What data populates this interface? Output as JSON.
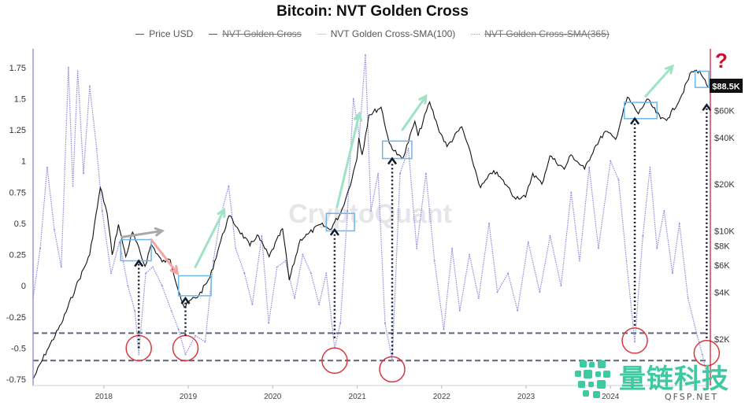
{
  "title": "Bitcoin: NVT Golden Cross",
  "legend": [
    {
      "label": "Price USD",
      "hidden": false
    },
    {
      "label": "NVT Golden Cross",
      "hidden": true
    },
    {
      "label": "NVT Golden Cross-SMA(100)",
      "hidden": false
    },
    {
      "label": "NVT Golden Cross-SMA(365)",
      "hidden": true
    }
  ],
  "watermark": "CryptoQuant",
  "brand": {
    "name": "量链科技",
    "site": "QFSP.NET"
  },
  "price_badge": "$88.5K",
  "question_mark": "?",
  "colors": {
    "price": "#111111",
    "nvt": "#8a8ae0",
    "grey_arrow": "#a8a8a8",
    "red_arrow": "#f4a3a3",
    "green_arrow": "#9de3c4",
    "box": "#6fb6e8",
    "circle": "#d9363e",
    "guide": "#5a6478",
    "question": "#c8102e",
    "brand": "#3fc9a0"
  },
  "chart_data": {
    "type": "line",
    "title": "Bitcoin: NVT Golden Cross",
    "xlabel": "",
    "ylabel": "",
    "x_range": [
      "2017-03-01",
      "2025-03-01"
    ],
    "x_ticks": [
      {
        "label": "2018",
        "date": "2018-01-01"
      },
      {
        "label": "2019",
        "date": "2019-01-01"
      },
      {
        "label": "2020",
        "date": "2020-01-01"
      },
      {
        "label": "2021",
        "date": "2021-01-01"
      },
      {
        "label": "2022",
        "date": "2022-01-01"
      },
      {
        "label": "2023",
        "date": "2023-01-01"
      },
      {
        "label": "2024",
        "date": "2024-01-01"
      }
    ],
    "left_axis": {
      "ylim": [
        -0.8,
        1.9
      ],
      "ticks": [
        {
          "label": "1.75",
          "value": 1.75
        },
        {
          "label": "1.5",
          "value": 1.5
        },
        {
          "label": "1.25",
          "value": 1.25
        },
        {
          "label": "1",
          "value": 1
        },
        {
          "label": "0.75",
          "value": 0.75
        },
        {
          "label": "0.5",
          "value": 0.5
        },
        {
          "label": "0.25",
          "value": 0.25
        },
        {
          "label": "0",
          "value": 0
        },
        {
          "label": "-0.25",
          "value": -0.25
        },
        {
          "label": "-0.5",
          "value": -0.5
        },
        {
          "label": "-0.75",
          "value": -0.75
        }
      ]
    },
    "right_axis": {
      "scale": "log",
      "ylim": [
        1000,
        150000
      ],
      "ticks": [
        {
          "label": "$60K",
          "value": 60000
        },
        {
          "label": "$40K",
          "value": 40000
        },
        {
          "label": "$20K",
          "value": 20000
        },
        {
          "label": "$10K",
          "value": 10000
        },
        {
          "label": "$8K",
          "value": 8000
        },
        {
          "label": "$6K",
          "value": 6000
        },
        {
          "label": "$4K",
          "value": 4000
        },
        {
          "label": "$2K",
          "value": 2000
        }
      ]
    },
    "guide_levels": [
      -0.38,
      -0.6
    ],
    "series": [
      {
        "name": "Price USD",
        "axis": "right",
        "points": [
          [
            "2017-03-01",
            1100
          ],
          [
            "2017-05-01",
            1700
          ],
          [
            "2017-07-01",
            2500
          ],
          [
            "2017-09-01",
            4300
          ],
          [
            "2017-11-01",
            7000
          ],
          [
            "2017-12-17",
            19000
          ],
          [
            "2018-01-15",
            13000
          ],
          [
            "2018-02-06",
            7000
          ],
          [
            "2018-03-05",
            11000
          ],
          [
            "2018-04-06",
            6800
          ],
          [
            "2018-05-05",
            9800
          ],
          [
            "2018-06-28",
            5900
          ],
          [
            "2018-07-25",
            8200
          ],
          [
            "2018-09-10",
            6300
          ],
          [
            "2018-10-15",
            6500
          ],
          [
            "2018-11-25",
            3900
          ],
          [
            "2018-12-15",
            3200
          ],
          [
            "2019-01-15",
            3600
          ],
          [
            "2019-02-15",
            3800
          ],
          [
            "2019-04-05",
            5000
          ],
          [
            "2019-05-15",
            8000
          ],
          [
            "2019-06-26",
            12500
          ],
          [
            "2019-08-01",
            10500
          ],
          [
            "2019-09-25",
            8000
          ],
          [
            "2019-10-26",
            9400
          ],
          [
            "2019-12-17",
            6800
          ],
          [
            "2020-02-13",
            10300
          ],
          [
            "2020-03-13",
            4800
          ],
          [
            "2020-04-30",
            8800
          ],
          [
            "2020-06-01",
            9500
          ],
          [
            "2020-07-27",
            11000
          ],
          [
            "2020-09-05",
            10200
          ],
          [
            "2020-10-21",
            13000
          ],
          [
            "2020-11-25",
            18500
          ],
          [
            "2020-12-30",
            29000
          ],
          [
            "2021-01-08",
            40000
          ],
          [
            "2021-01-22",
            31000
          ],
          [
            "2021-02-20",
            56000
          ],
          [
            "2021-04-14",
            63000
          ],
          [
            "2021-05-19",
            37000
          ],
          [
            "2021-06-22",
            31000
          ],
          [
            "2021-07-20",
            30000
          ],
          [
            "2021-09-07",
            51000
          ],
          [
            "2021-09-21",
            41000
          ],
          [
            "2021-11-10",
            68000
          ],
          [
            "2021-12-15",
            47000
          ],
          [
            "2022-01-24",
            35000
          ],
          [
            "2022-03-29",
            47000
          ],
          [
            "2022-05-12",
            29000
          ],
          [
            "2022-06-18",
            19000
          ],
          [
            "2022-08-14",
            24500
          ],
          [
            "2022-10-15",
            19200
          ],
          [
            "2022-11-10",
            16500
          ],
          [
            "2022-12-30",
            16500
          ],
          [
            "2023-01-30",
            23500
          ],
          [
            "2023-03-10",
            20000
          ],
          [
            "2023-04-14",
            30500
          ],
          [
            "2023-06-15",
            25000
          ],
          [
            "2023-07-14",
            31000
          ],
          [
            "2023-09-11",
            25000
          ],
          [
            "2023-10-24",
            34500
          ],
          [
            "2023-12-10",
            44000
          ],
          [
            "2024-01-23",
            39000
          ],
          [
            "2024-03-14",
            73000
          ],
          [
            "2024-05-01",
            57000
          ],
          [
            "2024-06-07",
            71000
          ],
          [
            "2024-08-05",
            53000
          ],
          [
            "2024-09-06",
            53500
          ],
          [
            "2024-10-29",
            72000
          ],
          [
            "2024-12-17",
            107000
          ],
          [
            "2025-01-20",
            108000
          ],
          [
            "2025-02-05",
            97000
          ],
          [
            "2025-02-28",
            84000
          ]
        ]
      },
      {
        "name": "NVT Golden Cross-SMA(100)",
        "axis": "left",
        "points": [
          [
            "2017-03-01",
            -0.1
          ],
          [
            "2017-04-01",
            0.3
          ],
          [
            "2017-05-01",
            0.95
          ],
          [
            "2017-06-01",
            0.45
          ],
          [
            "2017-07-01",
            0.15
          ],
          [
            "2017-08-01",
            1.75
          ],
          [
            "2017-08-20",
            0.8
          ],
          [
            "2017-09-10",
            1.72
          ],
          [
            "2017-10-05",
            0.9
          ],
          [
            "2017-11-01",
            1.6
          ],
          [
            "2017-12-01",
            1.1
          ],
          [
            "2017-12-25",
            0.6
          ],
          [
            "2018-02-01",
            0.1
          ],
          [
            "2018-03-10",
            0.35
          ],
          [
            "2018-04-15",
            0.0
          ],
          [
            "2018-05-15",
            -0.2
          ],
          [
            "2018-06-01",
            -0.55
          ],
          [
            "2018-07-01",
            0.1
          ],
          [
            "2018-08-01",
            0.15
          ],
          [
            "2018-09-10",
            0.0
          ],
          [
            "2018-10-20",
            -0.2
          ],
          [
            "2018-11-20",
            -0.35
          ],
          [
            "2018-12-20",
            -0.55
          ],
          [
            "2019-02-01",
            -0.4
          ],
          [
            "2019-03-15",
            -0.45
          ],
          [
            "2019-04-20",
            0.2
          ],
          [
            "2019-05-20",
            0.55
          ],
          [
            "2019-06-25",
            0.8
          ],
          [
            "2019-07-25",
            0.3
          ],
          [
            "2019-09-01",
            0.1
          ],
          [
            "2019-10-05",
            -0.15
          ],
          [
            "2019-11-15",
            0.4
          ],
          [
            "2019-12-15",
            -0.3
          ],
          [
            "2020-01-20",
            0.15
          ],
          [
            "2020-02-25",
            0.2
          ],
          [
            "2020-04-05",
            -0.1
          ],
          [
            "2020-05-10",
            0.25
          ],
          [
            "2020-06-15",
            0.1
          ],
          [
            "2020-07-20",
            -0.15
          ],
          [
            "2020-08-20",
            0.1
          ],
          [
            "2020-09-25",
            -0.5
          ],
          [
            "2020-10-20",
            -0.3
          ],
          [
            "2020-11-20",
            0.6
          ],
          [
            "2020-12-15",
            1.5
          ],
          [
            "2021-01-10",
            1.2
          ],
          [
            "2021-02-05",
            1.85
          ],
          [
            "2021-03-01",
            0.6
          ],
          [
            "2021-04-01",
            0.9
          ],
          [
            "2021-05-01",
            -0.3
          ],
          [
            "2021-06-01",
            -0.6
          ],
          [
            "2021-07-05",
            0.9
          ],
          [
            "2021-08-10",
            1.1
          ],
          [
            "2021-09-15",
            0.3
          ],
          [
            "2021-10-25",
            0.9
          ],
          [
            "2021-12-01",
            0.2
          ],
          [
            "2022-01-10",
            -0.35
          ],
          [
            "2022-02-15",
            0.3
          ],
          [
            "2022-03-20",
            -0.2
          ],
          [
            "2022-05-01",
            0.25
          ],
          [
            "2022-06-10",
            -0.1
          ],
          [
            "2022-07-25",
            0.5
          ],
          [
            "2022-08-30",
            -0.05
          ],
          [
            "2022-10-15",
            0.1
          ],
          [
            "2022-11-25",
            -0.2
          ],
          [
            "2023-01-10",
            0.35
          ],
          [
            "2023-03-01",
            -0.05
          ],
          [
            "2023-04-15",
            0.4
          ],
          [
            "2023-06-01",
            0.0
          ],
          [
            "2023-07-15",
            0.75
          ],
          [
            "2023-08-20",
            0.2
          ],
          [
            "2023-10-01",
            0.95
          ],
          [
            "2023-11-10",
            0.3
          ],
          [
            "2024-01-01",
            1.0
          ],
          [
            "2024-02-05",
            0.85
          ],
          [
            "2024-03-10",
            0.2
          ],
          [
            "2024-04-15",
            -0.45
          ],
          [
            "2024-05-20",
            0.4
          ],
          [
            "2024-06-20",
            0.95
          ],
          [
            "2024-07-20",
            0.3
          ],
          [
            "2024-08-20",
            0.6
          ],
          [
            "2024-09-25",
            0.1
          ],
          [
            "2024-10-25",
            0.5
          ],
          [
            "2024-12-01",
            -0.1
          ],
          [
            "2025-01-10",
            -0.4
          ],
          [
            "2025-02-01",
            -0.55
          ],
          [
            "2025-02-25",
            -0.75
          ]
        ]
      }
    ],
    "annotations": {
      "circles": [
        {
          "date": "2018-06-01",
          "value": -0.5
        },
        {
          "date": "2018-12-20",
          "value": -0.5
        },
        {
          "date": "2020-09-25",
          "value": -0.6
        },
        {
          "date": "2021-06-01",
          "value": -0.67
        },
        {
          "date": "2024-04-15",
          "value": -0.44
        },
        {
          "date": "2025-02-20",
          "value": -0.54
        }
      ],
      "boxes": [
        {
          "from": "2018-03-15",
          "to": "2018-07-25",
          "value_low": 0.2,
          "value_high": 0.37
        },
        {
          "from": "2018-11-20",
          "to": "2019-04-10",
          "value_low": -0.08,
          "value_high": 0.08
        },
        {
          "from": "2020-08-20",
          "to": "2020-12-20",
          "value_low": 0.44,
          "value_high": 0.58
        },
        {
          "from": "2021-04-20",
          "to": "2021-08-25",
          "value_low": 1.02,
          "value_high": 1.16
        },
        {
          "from": "2024-03-01",
          "to": "2024-07-20",
          "value_low": 1.34,
          "value_high": 1.47
        },
        {
          "from": "2025-01-01",
          "to": "2025-03-01",
          "value_low": 1.59,
          "value_high": 1.72
        }
      ],
      "up_arrows": [
        {
          "date": "2018-06-01",
          "from": -0.5,
          "to": 0.2
        },
        {
          "date": "2018-12-20",
          "from": -0.4,
          "to": -0.1
        },
        {
          "date": "2020-09-25",
          "from": -0.42,
          "to": 0.45
        },
        {
          "date": "2021-06-01",
          "from": -0.55,
          "to": 1.02
        },
        {
          "date": "2024-04-15",
          "from": -0.32,
          "to": 1.34
        },
        {
          "date": "2025-02-20",
          "from": -0.42,
          "to": 1.45
        }
      ],
      "trend_arrows": [
        {
          "kind": "grey",
          "from": [
            "2018-03-20",
            0.39
          ],
          "to": [
            "2018-09-10",
            0.44
          ]
        },
        {
          "kind": "red",
          "from": [
            "2018-07-25",
            0.37
          ],
          "to": [
            "2018-11-15",
            0.1
          ]
        },
        {
          "kind": "green",
          "from": [
            "2019-02-01",
            0.15
          ],
          "to": [
            "2019-06-05",
            0.61
          ]
        },
        {
          "kind": "green",
          "from": [
            "2020-10-05",
            0.63
          ],
          "to": [
            "2021-01-10",
            1.38
          ]
        },
        {
          "kind": "green",
          "from": [
            "2021-07-15",
            1.25
          ],
          "to": [
            "2021-10-25",
            1.52
          ]
        },
        {
          "kind": "green",
          "from": [
            "2024-06-01",
            1.52
          ],
          "to": [
            "2024-09-25",
            1.76
          ]
        }
      ]
    }
  }
}
